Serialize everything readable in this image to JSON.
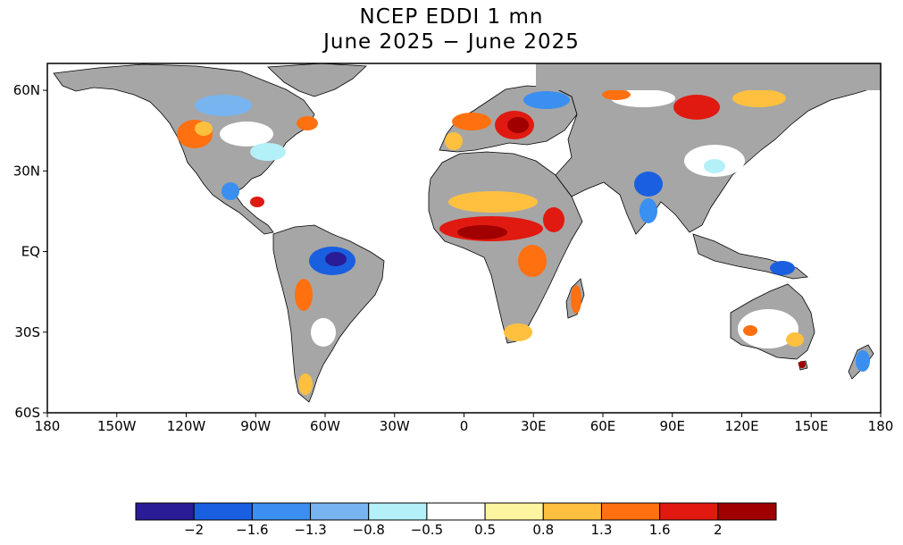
{
  "title": {
    "line1": "NCEP EDDI 1 mn",
    "line2": "June 2025 − June 2025"
  },
  "map": {
    "projection": "equirectangular",
    "lon_range": [
      -180,
      180
    ],
    "lat_range": [
      -60,
      70
    ],
    "lon_ticks": [
      {
        "value": -180,
        "label": "180"
      },
      {
        "value": -150,
        "label": "150W"
      },
      {
        "value": -120,
        "label": "120W"
      },
      {
        "value": -90,
        "label": "90W"
      },
      {
        "value": -60,
        "label": "60W"
      },
      {
        "value": -30,
        "label": "30W"
      },
      {
        "value": 0,
        "label": "0"
      },
      {
        "value": 30,
        "label": "30E"
      },
      {
        "value": 60,
        "label": "60E"
      },
      {
        "value": 90,
        "label": "90E"
      },
      {
        "value": 120,
        "label": "120E"
      },
      {
        "value": 150,
        "label": "150E"
      },
      {
        "value": 180,
        "label": "180"
      }
    ],
    "lat_ticks": [
      {
        "value": 60,
        "label": "60N"
      },
      {
        "value": 30,
        "label": "30N"
      },
      {
        "value": 0,
        "label": "EQ"
      },
      {
        "value": -30,
        "label": "30S"
      },
      {
        "value": -60,
        "label": "60S"
      }
    ],
    "land_color": "#a6a6a6",
    "ocean_color": "#ffffff",
    "nodata_color": "#a6a6a6"
  },
  "colorbar": {
    "colors": [
      "#2a1b96",
      "#1a5fe0",
      "#3a8ff0",
      "#78b4f0",
      "#b4f0f8",
      "#ffffff",
      "#fff5a0",
      "#ffc040",
      "#ff7010",
      "#e01a10",
      "#a00000"
    ],
    "labels": [
      "−2",
      "−1.6",
      "−1.3",
      "−0.8",
      "−0.5",
      "0.5",
      "0.8",
      "1.3",
      "1.6",
      "2"
    ]
  }
}
